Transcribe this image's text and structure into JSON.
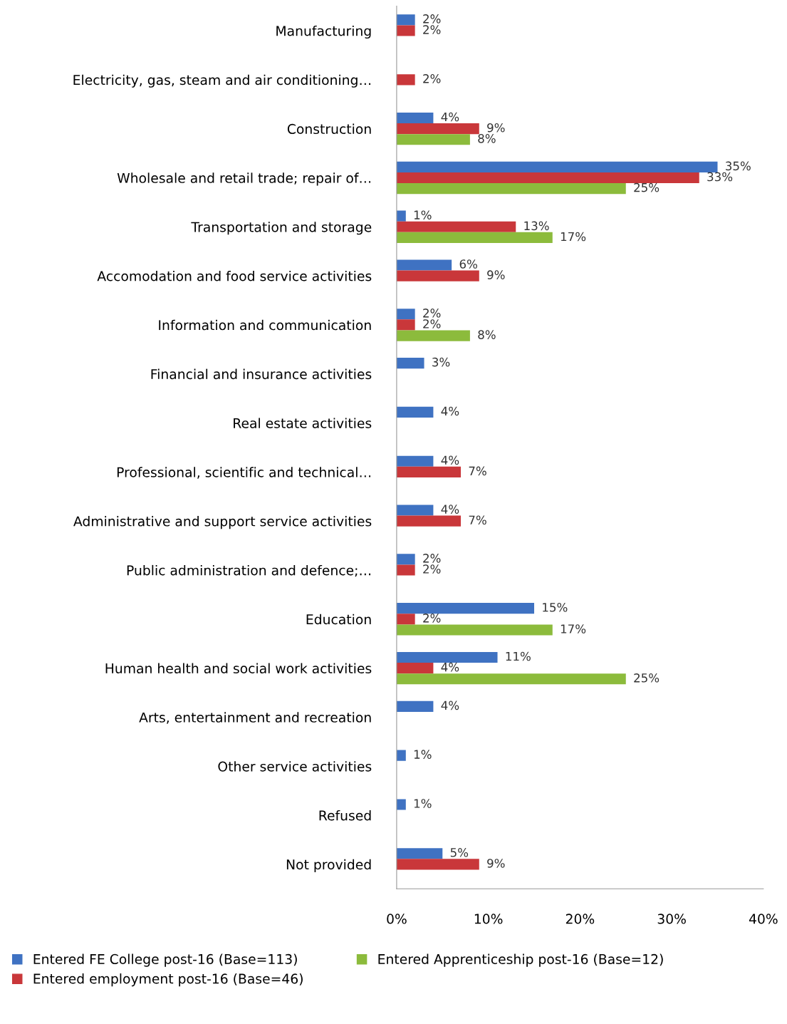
{
  "chart_data": {
    "type": "bar",
    "orientation": "horizontal",
    "categories": [
      "Manufacturing",
      "Electricity, gas, steam and air conditioning…",
      "Construction",
      "Wholesale and retail trade; repair of…",
      "Transportation and storage",
      "Accomodation and food service activities",
      "Information and communication",
      "Financial and insurance activities",
      "Real estate activities",
      "Professional, scientific and technical…",
      "Administrative and support service activities",
      "Public administration and defence;…",
      "Education",
      "Human health and social work activities",
      "Arts, entertainment and recreation",
      "Other service activities",
      "Refused",
      "Not provided"
    ],
    "series": [
      {
        "name": "Entered FE College post-16 (Base=113)",
        "color": "#3f72c2",
        "values": [
          2,
          null,
          4,
          35,
          1,
          6,
          2,
          3,
          4,
          4,
          4,
          2,
          15,
          11,
          4,
          1,
          1,
          5
        ],
        "value_labels": [
          "2%",
          null,
          "4%",
          "35%",
          "1%",
          "6%",
          "2%",
          "3%",
          "4%",
          "4%",
          "4%",
          "2%",
          "15%",
          "11%",
          "4%",
          "1%",
          "1%",
          "5%"
        ]
      },
      {
        "name": "Entered employment post-16 (Base=46)",
        "color": "#c9373a",
        "values": [
          2,
          2,
          9,
          33,
          13,
          9,
          2,
          null,
          null,
          7,
          7,
          2,
          2,
          4,
          null,
          null,
          null,
          9
        ],
        "value_labels": [
          "2%",
          "2%",
          "9%",
          "33%",
          "13%",
          "9%",
          "2%",
          null,
          null,
          "7%",
          "7%",
          "2%",
          "2%",
          "4%",
          null,
          null,
          null,
          "9%"
        ]
      },
      {
        "name": "Entered Apprenticeship post-16 (Base=12)",
        "color": "#8cbb3c",
        "values": [
          null,
          null,
          8,
          25,
          17,
          null,
          8,
          null,
          null,
          null,
          null,
          null,
          17,
          25,
          null,
          null,
          null,
          null
        ],
        "value_labels": [
          null,
          null,
          "8%",
          "25%",
          "17%",
          null,
          "8%",
          null,
          null,
          null,
          null,
          null,
          "17%",
          "25%",
          null,
          null,
          null,
          null
        ]
      }
    ],
    "xlim": [
      0,
      40
    ],
    "xticks": [
      {
        "value": 0,
        "label": "0%"
      },
      {
        "value": 10,
        "label": "10%"
      },
      {
        "value": 20,
        "label": "20%"
      },
      {
        "value": 30,
        "label": "30%"
      },
      {
        "value": 40,
        "label": "40%"
      }
    ],
    "grid": false,
    "legend": "bottom"
  }
}
